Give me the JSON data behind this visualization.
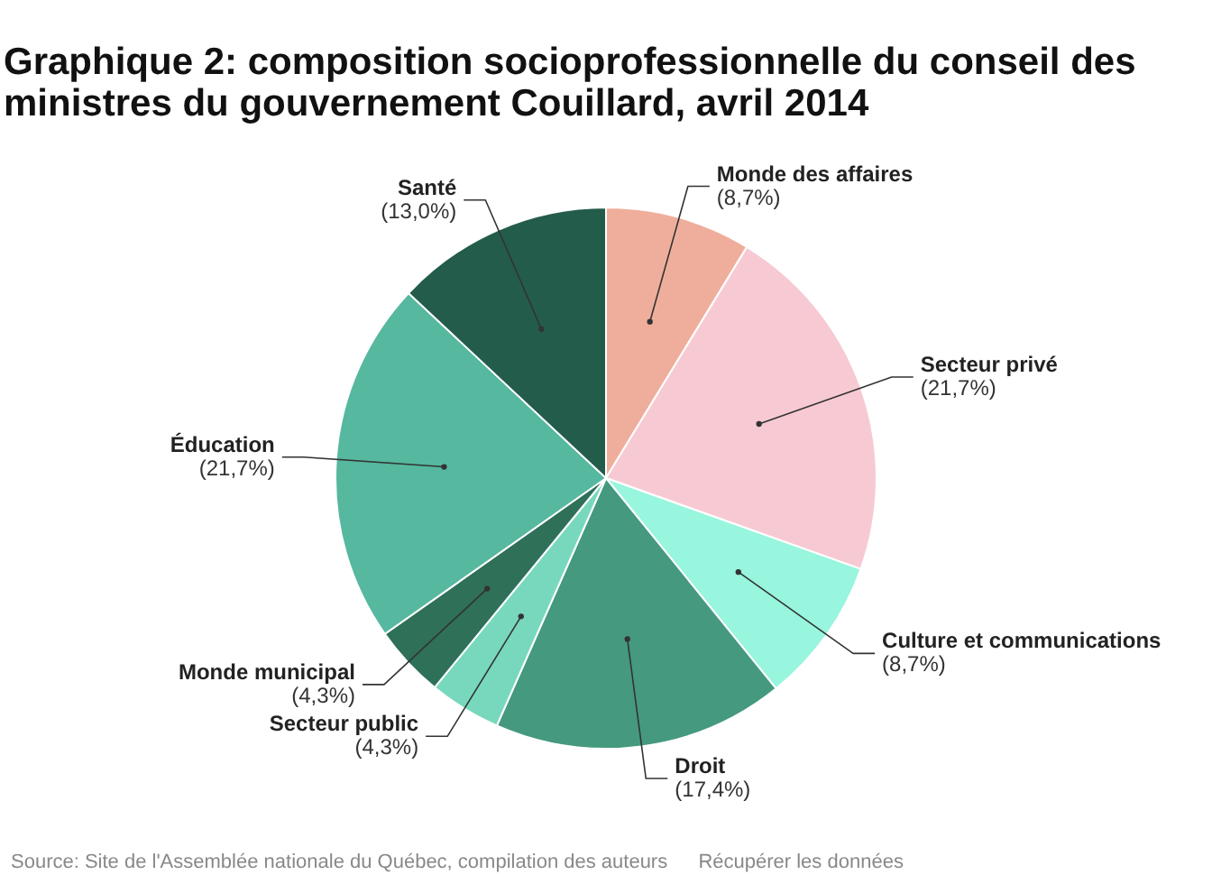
{
  "chart_data": {
    "type": "pie",
    "title": "Graphique 2: composition socioprofessionnelle du conseil des ministres du gouvernement Couillard, avril 2014",
    "categories": [
      "Monde des affaires",
      "Secteur privé",
      "Culture et communications",
      "Droit",
      "Secteur public",
      "Monde municipal",
      "Éducation",
      "Santé"
    ],
    "values": [
      8.7,
      21.7,
      8.7,
      17.4,
      4.3,
      4.3,
      21.7,
      13.0
    ],
    "value_labels": [
      "(8,7%)",
      "(21,7%)",
      "(8,7%)",
      "(17,4%)",
      "(4,3%)",
      "(4,3%)",
      "(21,7%)",
      "(13,0%)"
    ],
    "colors": [
      "#efae9b",
      "#f7cad3",
      "#98f5de",
      "#45997f",
      "#78d8be",
      "#2f7059",
      "#55b89f",
      "#245c4b"
    ],
    "annotations": [
      "Source: Site de l'Assemblée nationale du Québec, compilation des auteurs",
      "Récupérer les données"
    ]
  }
}
